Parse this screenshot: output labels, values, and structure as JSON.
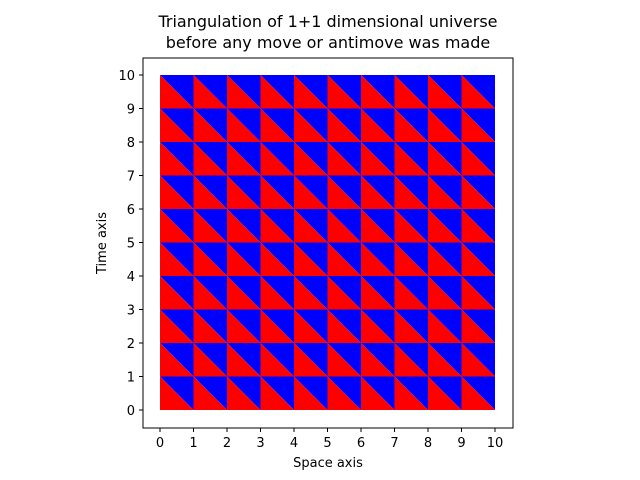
{
  "chart_data": {
    "type": "heatmap",
    "title_lines": [
      "Triangulation of 1+1 dimensional universe",
      "before any move or antimove was made"
    ],
    "xlabel": "Space axis",
    "ylabel": "Time axis",
    "xlim": [
      0,
      10
    ],
    "ylim": [
      0,
      10
    ],
    "xticks": [
      "0",
      "1",
      "2",
      "3",
      "4",
      "5",
      "6",
      "7",
      "8",
      "9",
      "10"
    ],
    "yticks": [
      "0",
      "1",
      "2",
      "3",
      "4",
      "5",
      "6",
      "7",
      "8",
      "9",
      "10"
    ],
    "grid": false,
    "cells_x": 10,
    "cells_y": 10,
    "triangle_colors": {
      "upper_right": "#0000ff",
      "lower_left": "#ff0000"
    },
    "cell_diagonal": "top-left to bottom-right"
  }
}
